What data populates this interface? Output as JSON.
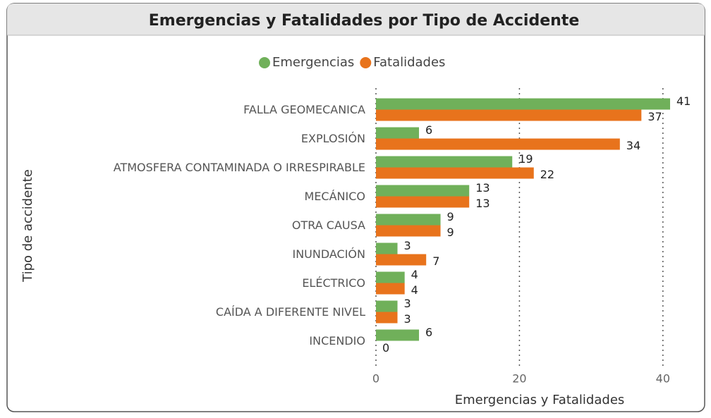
{
  "chart_data": {
    "type": "bar",
    "orientation": "horizontal",
    "title": "Emergencias y Fatalidades por Tipo de Accidente",
    "categories": [
      "FALLA GEOMECANICA",
      "EXPLOSIÓN",
      "ATMOSFERA CONTAMINADA O IRRESPIRABLE",
      "MECÁNICO",
      "OTRA CAUSA",
      "INUNDACIÓN",
      "ELÉCTRICO",
      "CAÍDA A DIFERENTE NIVEL",
      "INCENDIO"
    ],
    "series": [
      {
        "name": "Emergencias",
        "color": "#70b05a",
        "values": [
          41,
          6,
          19,
          13,
          9,
          3,
          4,
          3,
          6
        ]
      },
      {
        "name": "Fatalidades",
        "color": "#e8731c",
        "values": [
          37,
          34,
          22,
          13,
          9,
          7,
          4,
          3,
          0
        ]
      }
    ],
    "xlim": [
      0,
      41
    ],
    "xticks": [
      0,
      20,
      40
    ],
    "x_label": "Emergencias y Fatalidades",
    "y_label": "Tipo de accidente",
    "grid": true,
    "legend": "top"
  }
}
